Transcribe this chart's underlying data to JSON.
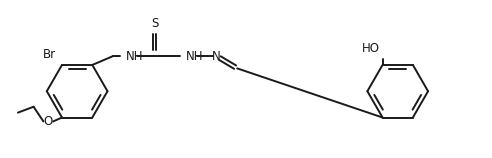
{
  "bg_color": "#ffffff",
  "line_color": "#1a1a1a",
  "line_width": 1.4,
  "font_size": 8.5,
  "figsize": [
    4.92,
    1.58
  ],
  "dpi": 100,
  "xlim": [
    0,
    10
  ],
  "ylim": [
    0,
    3.2
  ]
}
